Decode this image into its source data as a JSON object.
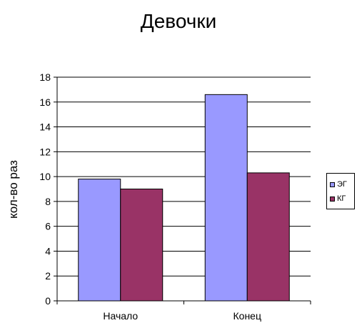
{
  "chart_data": {
    "type": "bar",
    "title": "Девочки",
    "xlabel": "",
    "ylabel": "кол-во раз",
    "categories": [
      "Начало",
      "Конец"
    ],
    "series": [
      {
        "name": "ЭГ",
        "values": [
          9.8,
          16.6
        ],
        "color": "#9999ff"
      },
      {
        "name": "КГ",
        "values": [
          9.0,
          10.3
        ],
        "color": "#993366"
      }
    ],
    "ylim": [
      0,
      18
    ],
    "yticks": [
      0,
      2,
      4,
      6,
      8,
      10,
      12,
      14,
      16,
      18
    ],
    "grid": true,
    "legend_position": "right"
  }
}
